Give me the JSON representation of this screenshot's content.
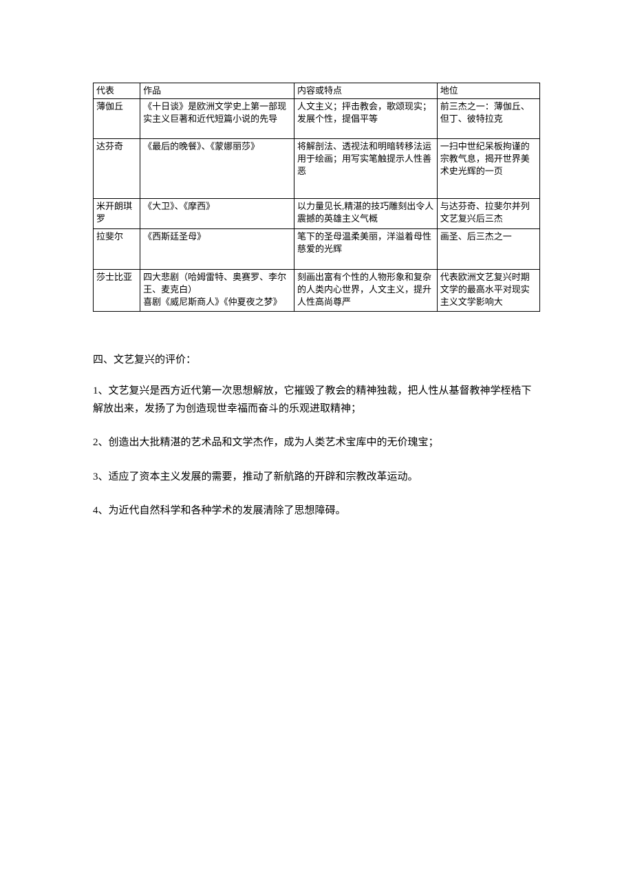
{
  "table": {
    "header": [
      "代表",
      "作品",
      "内容或特点",
      "地位"
    ],
    "rows": [
      {
        "c1": "薄伽丘",
        "c2": "《十日谈》是欧洲文学史上第一部现实主义巨著和近代短篇小说的先导",
        "c3": "人文主义；抨击教会，歌颂现实；发展个性，提倡平等",
        "c4": "前三杰之一：薄伽丘、但丁、彼特拉克"
      },
      {
        "c1": "达芬奇",
        "c2": "《最后的晚餐》、《蒙娜丽莎》",
        "c3": "将解剖法、透视法和明暗转移法运用于绘画；用写实笔触提示人性善恶",
        "c4": "一扫中世纪呆板拘谨的宗教气息，揭开世界美术史光辉的一页"
      },
      {
        "c1": "米开朗琪罗",
        "c2": "《大卫》、《摩西》",
        "c3": "以力量见长,精湛的技巧雕刻出令人震撼的英雄主义气概",
        "c4": "与达芬奇、拉斐尔并列文艺复兴后三杰"
      },
      {
        "c1": "拉斐尔",
        "c2": "《西斯廷圣母》",
        "c3": "笔下的圣母温柔美丽，洋溢着母性慈爱的光辉",
        "c4": "画圣、后三杰之一"
      },
      {
        "c1": "莎士比亚",
        "c2": "四大悲剧（哈姆雷特、奥赛罗、李尔王、麦克白）\n喜剧《威尼斯商人》《仲夏夜之梦》",
        "c3": "刻画出富有个性的人物形象和复杂的人类内心世界，人文主义，提升人性高尚尊严",
        "c3_tail": "严",
        "c4": "代表欧洲文艺复兴时期文学的最高水平对现实主义文学影响大"
      }
    ]
  },
  "heading": "四、文艺复兴的评价：",
  "paras": [
    "1、文艺复兴是西方近代第一次思想解放，它摧毁了教会的精神独裁，把人性从基督教神学桎梏下解放出来，发扬了为创造现世幸福而奋斗的乐观进取精神；",
    "2、创造出大批精湛的艺术品和文学杰作，成为人类艺术宝库中的无价瑰宝；",
    "3、适应了资本主义发展的需要，推动了新航路的开辟和宗教改革运动。",
    "4、为近代自然科学和各种学术的发展清除了思想障碍。"
  ]
}
